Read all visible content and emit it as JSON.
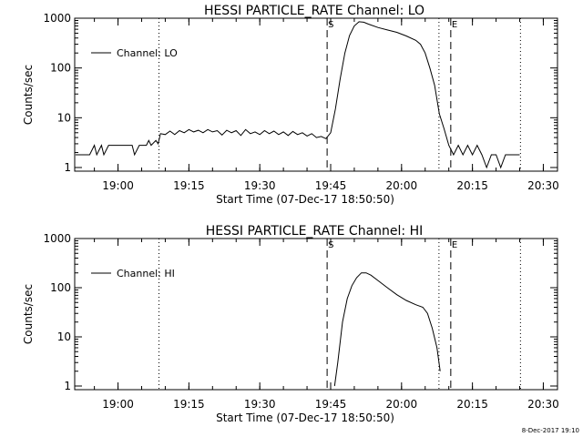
{
  "chart_data": [
    {
      "type": "line",
      "title": "HESSI PARTICLE_RATE Channel: LO",
      "xlabel": "Start Time (07-Dec-17 18:50:50)",
      "ylabel": "Counts/sec",
      "yscale": "log",
      "xlim": [
        "18:50:50",
        "20:33:00"
      ],
      "ylim": [
        1,
        1000
      ],
      "x_ticks": [
        "19:00",
        "19:15",
        "19:30",
        "19:45",
        "20:00",
        "20:15",
        "20:30"
      ],
      "y_ticks": [
        "1",
        "10",
        "100",
        "1000"
      ],
      "legend": {
        "entries": [
          "Channel: LO"
        ],
        "position": "top-left"
      },
      "markers": [
        {
          "time": "19:08:40",
          "style": "dotted",
          "label": ""
        },
        {
          "time": "19:44:15",
          "style": "dashed",
          "label": "S"
        },
        {
          "time": "20:07:55",
          "style": "dotted",
          "label": ""
        },
        {
          "time": "20:10:25",
          "style": "dashed",
          "label": "E"
        },
        {
          "time": "20:25:10",
          "style": "dotted",
          "label": ""
        }
      ],
      "series": [
        {
          "name": "Channel: LO",
          "points": [
            [
              "18:51:00",
              1.8
            ],
            [
              "18:54:00",
              1.8
            ],
            [
              "18:55:00",
              2.8
            ],
            [
              "18:55:30",
              1.8
            ],
            [
              "18:56:30",
              2.8
            ],
            [
              "18:57:00",
              1.8
            ],
            [
              "18:58:00",
              2.8
            ],
            [
              "18:58:30",
              2.8
            ],
            [
              "18:59:30",
              2.8
            ],
            [
              "19:01:00",
              2.8
            ],
            [
              "19:03:00",
              2.8
            ],
            [
              "19:03:30",
              1.8
            ],
            [
              "19:04:30",
              2.8
            ],
            [
              "19:06:00",
              2.8
            ],
            [
              "19:06:30",
              3.5
            ],
            [
              "19:07:00",
              2.8
            ],
            [
              "19:08:00",
              3.5
            ],
            [
              "19:08:30",
              3.0
            ],
            [
              "19:09:00",
              4.8
            ],
            [
              "19:10:00",
              4.6
            ],
            [
              "19:11:00",
              5.4
            ],
            [
              "19:12:00",
              4.6
            ],
            [
              "19:13:00",
              5.5
            ],
            [
              "19:14:00",
              5.0
            ],
            [
              "19:15:00",
              5.8
            ],
            [
              "19:16:00",
              5.2
            ],
            [
              "19:17:00",
              5.6
            ],
            [
              "19:18:00",
              5.0
            ],
            [
              "19:19:00",
              5.8
            ],
            [
              "19:20:00",
              5.2
            ],
            [
              "19:21:00",
              5.5
            ],
            [
              "19:22:00",
              4.5
            ],
            [
              "19:23:00",
              5.6
            ],
            [
              "19:24:00",
              5.0
            ],
            [
              "19:25:00",
              5.5
            ],
            [
              "19:26:00",
              4.4
            ],
            [
              "19:27:00",
              5.8
            ],
            [
              "19:28:00",
              4.8
            ],
            [
              "19:29:00",
              5.2
            ],
            [
              "19:30:00",
              4.6
            ],
            [
              "19:31:00",
              5.5
            ],
            [
              "19:32:00",
              4.8
            ],
            [
              "19:33:00",
              5.4
            ],
            [
              "19:34:00",
              4.6
            ],
            [
              "19:35:00",
              5.2
            ],
            [
              "19:36:00",
              4.4
            ],
            [
              "19:37:00",
              5.3
            ],
            [
              "19:38:00",
              4.6
            ],
            [
              "19:39:00",
              5.0
            ],
            [
              "19:40:00",
              4.3
            ],
            [
              "19:41:00",
              4.8
            ],
            [
              "19:42:00",
              4.0
            ],
            [
              "19:43:00",
              4.2
            ],
            [
              "19:44:00",
              3.8
            ],
            [
              "19:45:00",
              5.0
            ],
            [
              "19:46:00",
              15
            ],
            [
              "19:47:00",
              60
            ],
            [
              "19:48:00",
              200
            ],
            [
              "19:49:00",
              450
            ],
            [
              "19:50:00",
              700
            ],
            [
              "19:51:00",
              850
            ],
            [
              "19:52:00",
              830
            ],
            [
              "19:53:00",
              760
            ],
            [
              "19:55:00",
              650
            ],
            [
              "19:57:00",
              580
            ],
            [
              "19:59:00",
              520
            ],
            [
              "20:01:00",
              440
            ],
            [
              "20:03:00",
              360
            ],
            [
              "20:04:00",
              300
            ],
            [
              "20:05:00",
              200
            ],
            [
              "20:06:00",
              100
            ],
            [
              "20:07:00",
              45
            ],
            [
              "20:08:00",
              12
            ],
            [
              "20:09:00",
              6
            ],
            [
              "20:10:00",
              2.8
            ],
            [
              "20:11:00",
              1.8
            ],
            [
              "20:12:00",
              2.8
            ],
            [
              "20:13:00",
              1.8
            ],
            [
              "20:14:00",
              2.8
            ],
            [
              "20:15:00",
              1.8
            ],
            [
              "20:16:00",
              2.8
            ],
            [
              "20:17:00",
              1.8
            ],
            [
              "20:18:00",
              1.0
            ],
            [
              "20:19:00",
              1.8
            ],
            [
              "20:20:00",
              1.8
            ],
            [
              "20:21:00",
              1.0
            ],
            [
              "20:22:00",
              1.8
            ],
            [
              "20:23:00",
              1.8
            ],
            [
              "20:24:00",
              1.8
            ],
            [
              "20:25:00",
              1.8
            ]
          ]
        }
      ]
    },
    {
      "type": "line",
      "title": "HESSI PARTICLE_RATE Channel: HI",
      "xlabel": "Start Time (07-Dec-17 18:50:50)",
      "ylabel": "Counts/sec",
      "yscale": "log",
      "xlim": [
        "18:50:50",
        "20:33:00"
      ],
      "ylim": [
        1,
        1000
      ],
      "x_ticks": [
        "19:00",
        "19:15",
        "19:30",
        "19:45",
        "20:00",
        "20:15",
        "20:30"
      ],
      "y_ticks": [
        "1",
        "10",
        "100",
        "1000"
      ],
      "legend": {
        "entries": [
          "Channel: HI"
        ],
        "position": "top-left"
      },
      "markers": [
        {
          "time": "19:08:40",
          "style": "dotted",
          "label": ""
        },
        {
          "time": "19:44:15",
          "style": "dashed",
          "label": "S"
        },
        {
          "time": "20:07:55",
          "style": "dotted",
          "label": ""
        },
        {
          "time": "20:10:25",
          "style": "dashed",
          "label": "E"
        },
        {
          "time": "20:25:10",
          "style": "dotted",
          "label": ""
        }
      ],
      "series": [
        {
          "name": "Channel: HI",
          "points": [
            [
              "19:45:50",
              1.0
            ],
            [
              "19:46:30",
              3
            ],
            [
              "19:47:30",
              20
            ],
            [
              "19:48:30",
              60
            ],
            [
              "19:49:30",
              110
            ],
            [
              "19:50:30",
              160
            ],
            [
              "19:51:30",
              200
            ],
            [
              "19:52:30",
              200
            ],
            [
              "19:53:30",
              180
            ],
            [
              "19:55:00",
              140
            ],
            [
              "19:57:00",
              100
            ],
            [
              "19:59:00",
              72
            ],
            [
              "20:01:00",
              55
            ],
            [
              "20:03:00",
              45
            ],
            [
              "20:04:30",
              40
            ],
            [
              "20:05:30",
              30
            ],
            [
              "20:06:30",
              15
            ],
            [
              "20:07:30",
              6
            ],
            [
              "20:08:10",
              2.0
            ]
          ]
        }
      ]
    }
  ],
  "footer": {
    "timestamp": "8-Dec-2017 19:10"
  }
}
